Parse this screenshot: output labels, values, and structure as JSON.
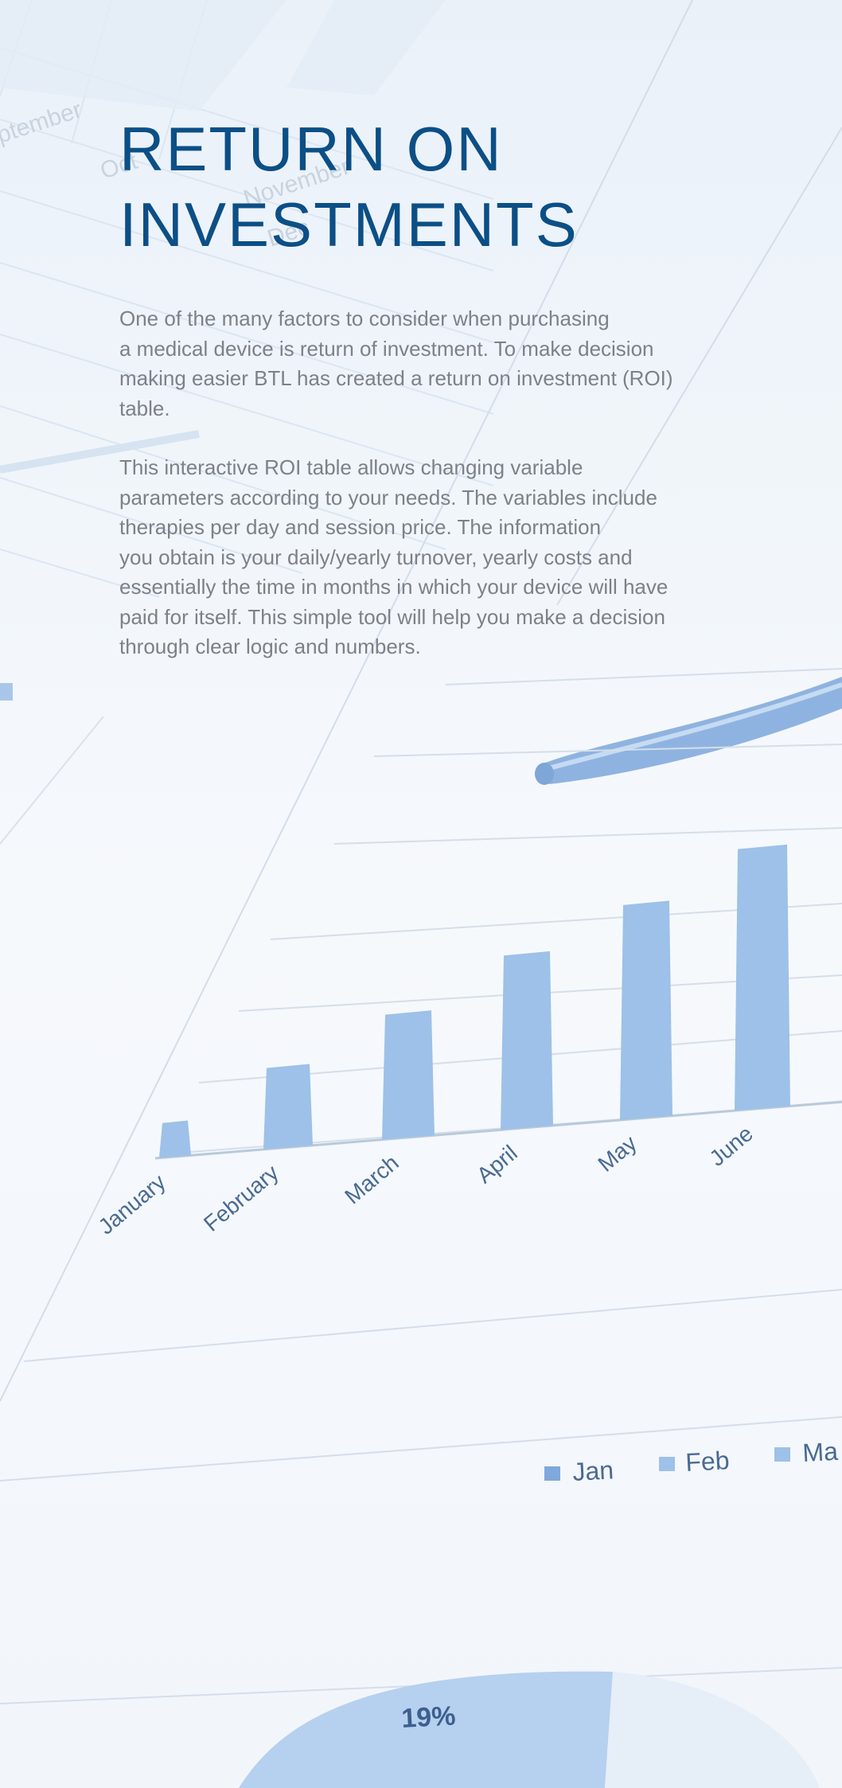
{
  "title_lines": [
    "RETURN ON",
    "INVESTMENTS"
  ],
  "paragraph_1_lines": [
    "One of the many factors to consider when purchasing",
    "a medical device is return of investment. To make decision",
    "making easier BTL has created a return on investment (ROI)",
    "table."
  ],
  "paragraph_2_lines": [
    "This interactive ROI table allows changing variable",
    "parameters according to your needs. The variables include",
    "therapies per day and session price. The information",
    "you obtain is your daily/yearly turnover, yearly costs and",
    "essentially the time in months in which your device will have",
    "paid for itself. This simple tool will help you make a decision",
    "through clear logic and numbers."
  ],
  "background_chart": {
    "month_labels": [
      "January",
      "February",
      "March",
      "April",
      "May",
      "June"
    ],
    "bar_levels": [
      0.12,
      0.28,
      0.43,
      0.6,
      0.74,
      0.9
    ],
    "legend": [
      "Jan",
      "Feb",
      "Ma"
    ],
    "top_sheet_text": [
      "ptember",
      "Oct",
      "November",
      "Dec"
    ],
    "pie_label": "19%"
  },
  "colors": {
    "title": "#0b4f86",
    "body_text": "#7d8187",
    "bar": "#9dc1e8",
    "label": "#4a6a92"
  }
}
